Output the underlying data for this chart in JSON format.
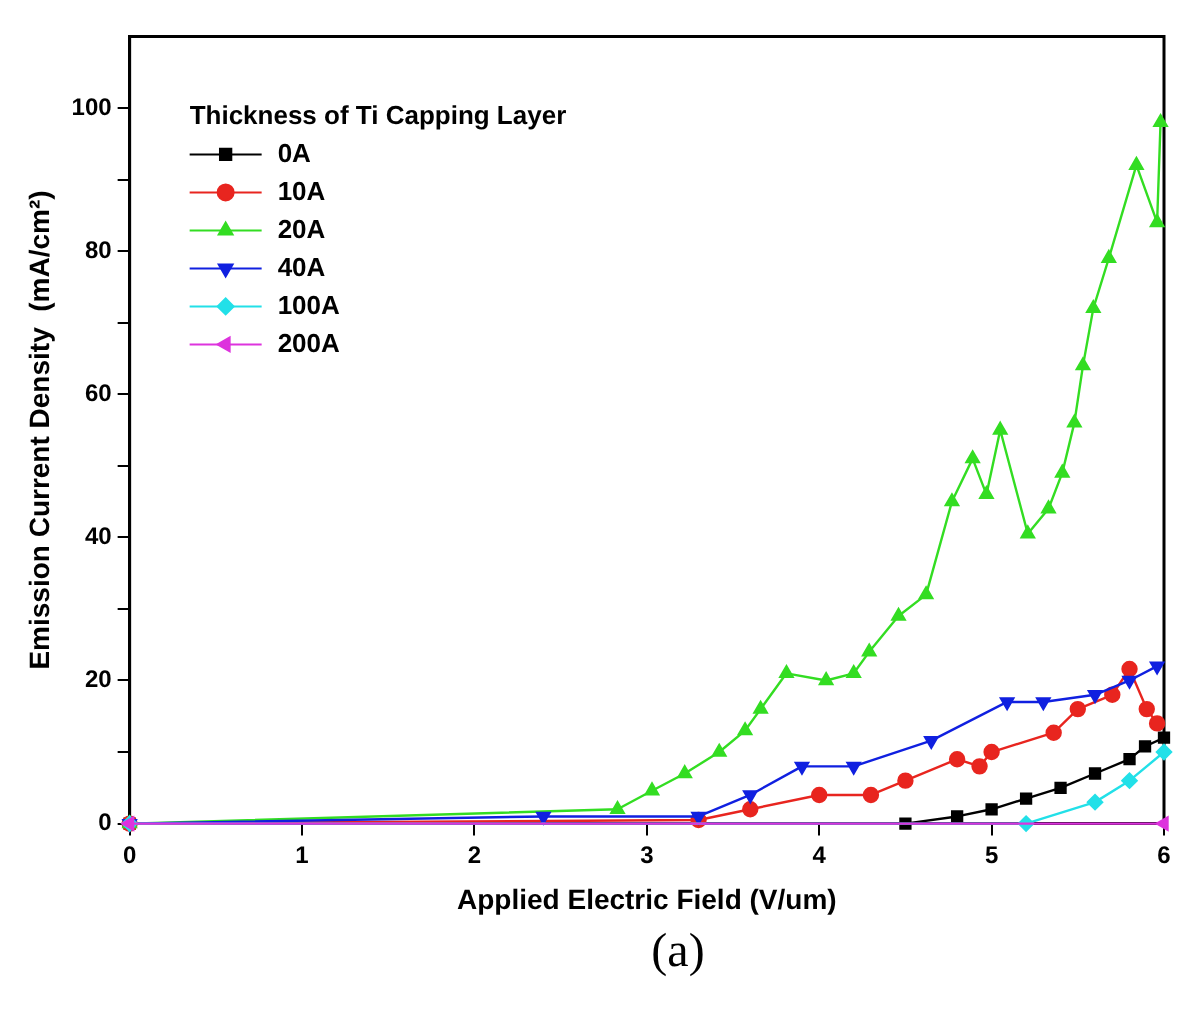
{
  "chart_data": {
    "type": "line",
    "xlabel": "Applied Electric Field (V/um)",
    "ylabel": "Emission Current Density  (mA/cm²)",
    "legend_title": "Thickness of Ti Capping Layer",
    "legend": "top left",
    "grid": false,
    "line_style": "solid",
    "xlim": [
      0,
      6
    ],
    "ylim": [
      0,
      110
    ],
    "xticks": [
      0,
      1,
      2,
      3,
      4,
      5,
      6
    ],
    "yticks": [
      0,
      {
        "value": 10,
        "label": null
      },
      20,
      {
        "value": 30,
        "label": null
      },
      40,
      {
        "value": 50,
        "label": null
      },
      60,
      {
        "value": 70,
        "label": null
      },
      80,
      {
        "value": 90,
        "label": null
      },
      100
    ],
    "annotations": [
      "(a)"
    ],
    "series": [
      {
        "name": "0A",
        "color": "#000000",
        "marker": "square",
        "x": [
          0,
          4.5,
          4.8,
          5.0,
          5.2,
          5.4,
          5.6,
          5.8,
          5.89,
          6.0
        ],
        "values": [
          0,
          0,
          1,
          2,
          3.5,
          5,
          7,
          9,
          10.8,
          12
        ]
      },
      {
        "name": "10A",
        "color": "#e8251f",
        "marker": "circle",
        "x": [
          0,
          3.3,
          3.6,
          4.0,
          4.3,
          4.5,
          4.8,
          4.93,
          5.0,
          5.36,
          5.5,
          5.7,
          5.8,
          5.9,
          5.96
        ],
        "values": [
          0,
          0.5,
          2,
          4,
          4,
          6,
          9,
          8,
          10,
          12.7,
          16,
          18,
          21.6,
          16,
          14
        ]
      },
      {
        "name": "20A",
        "color": "#33dd22",
        "marker": "triangle",
        "x": [
          0,
          2.83,
          3.03,
          3.22,
          3.42,
          3.57,
          3.66,
          3.81,
          4.04,
          4.2,
          4.29,
          4.46,
          4.62,
          4.77,
          4.89,
          4.97,
          5.05,
          5.21,
          5.33,
          5.41,
          5.48,
          5.53,
          5.59,
          5.68,
          5.84,
          5.96,
          5.98
        ],
        "values": [
          0,
          2,
          4.6,
          7,
          10,
          13,
          16,
          21,
          20,
          21,
          24,
          29,
          32,
          45,
          51,
          46,
          55,
          40.5,
          44,
          49,
          56,
          64,
          72,
          79,
          92,
          84,
          98
        ]
      },
      {
        "name": "40A",
        "color": "#1020e0",
        "marker": "triangle-down",
        "x": [
          0,
          2.4,
          3.3,
          3.6,
          3.9,
          4.2,
          4.65,
          5.09,
          5.3,
          5.6,
          5.8,
          5.96
        ],
        "values": [
          0,
          1,
          1,
          4,
          8,
          8,
          11.6,
          17,
          17,
          18,
          20,
          22
        ]
      },
      {
        "name": "100A",
        "color": "#22e0e8",
        "marker": "diamond",
        "x": [
          0,
          5.2,
          5.6,
          5.8,
          6.0
        ],
        "values": [
          0,
          0,
          3,
          6,
          10
        ]
      },
      {
        "name": "200A",
        "color": "#dd33dd",
        "marker": "triangle-left",
        "x": [
          0,
          6.0
        ],
        "values": [
          0,
          0
        ]
      }
    ]
  }
}
